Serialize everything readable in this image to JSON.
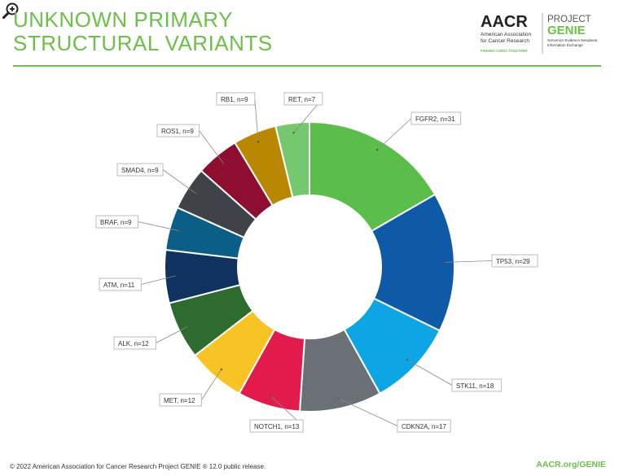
{
  "header": {
    "title_line1": "UNKNOWN PRIMARY",
    "title_line2": "STRUCTURAL VARIANTS"
  },
  "logos": {
    "aacr": {
      "wordmark": "AACR",
      "line1": "American Association",
      "line2": "for Cancer Research",
      "tagline": "FINDING CURES TOGETHER",
      "brand_color": "#6cc04a"
    },
    "genie": {
      "line1": "PROJECT",
      "line2": "GENIE",
      "sub1": "Genomics Evidence Neoplasia",
      "sub2": "Information Exchange",
      "brand_color": "#6cc04a"
    }
  },
  "zoom_icon": "zoom-in-icon",
  "chart_data": {
    "type": "pie",
    "donut": true,
    "slices": [
      {
        "label": "FGFR2, n=31",
        "value": 31,
        "color": "#5bbd4a"
      },
      {
        "label": "TP53, n=29",
        "value": 29,
        "color": "#0e5aa7"
      },
      {
        "label": "STK11, n=18",
        "value": 18,
        "color": "#0ea5e4"
      },
      {
        "label": "CDKN2A, n=17",
        "value": 17,
        "color": "#6b7077"
      },
      {
        "label": "NOTCH1, n=13",
        "value": 13,
        "color": "#e31b4c"
      },
      {
        "label": "MET, n=12",
        "value": 12,
        "color": "#f7c325"
      },
      {
        "label": "ALK, n=12",
        "value": 12,
        "color": "#2e6b2f"
      },
      {
        "label": "ATM, n=11",
        "value": 11,
        "color": "#0f3260"
      },
      {
        "label": "BRAF, n=9",
        "value": 9,
        "color": "#0b5f87"
      },
      {
        "label": "SMAD4, n=9",
        "value": 9,
        "color": "#3f4348"
      },
      {
        "label": "ROS1, n=9",
        "value": 9,
        "color": "#8d0e2f"
      },
      {
        "label": "RB1, n=9",
        "value": 9,
        "color": "#b98800"
      },
      {
        "label": "RET, n=7",
        "value": 7,
        "color": "#75c86e"
      }
    ]
  },
  "footer": {
    "copyright": "© 2022 American Association for Cancer Research Project GENIE ® 12.0 public release.",
    "link": "AACR.org/GENIE"
  }
}
